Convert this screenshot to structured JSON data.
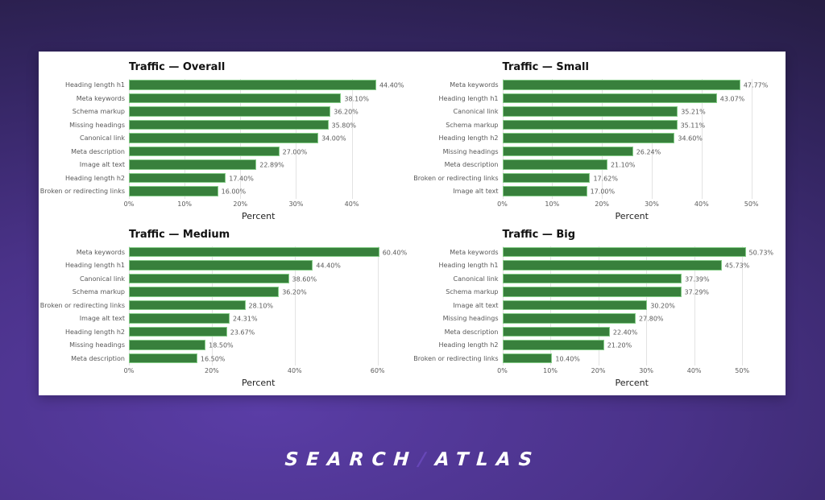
{
  "brand": {
    "part1": "SEARCH",
    "slash": "/",
    "part2": "ATLAS"
  },
  "style": {
    "bar_fill": "#38803c",
    "bar_edge": "#84cc87",
    "gridline": "#e3e3e3",
    "panel_bg": "#ffffff",
    "background_purple": "#4a3289",
    "logo_slash": "#6747b8"
  },
  "chart_data": [
    {
      "type": "bar",
      "orientation": "horizontal",
      "title": "Traffic — Overall",
      "xlabel": "Percent",
      "categories": [
        "Heading length h1",
        "Meta keywords",
        "Schema markup",
        "Missing headings",
        "Canonical link",
        "Meta description",
        "Image alt text",
        "Heading length h2",
        "Broken or redirecting links"
      ],
      "values": [
        44.4,
        38.1,
        36.2,
        35.8,
        34.0,
        27.0,
        22.89,
        17.4,
        16.0
      ],
      "value_labels": [
        "44.40%",
        "38.10%",
        "36.20%",
        "35.80%",
        "34.00%",
        "27.00%",
        "22.89%",
        "17.40%",
        "16.00%"
      ],
      "tick_values": [
        0,
        10,
        20,
        30,
        40
      ],
      "tick_labels": [
        "0%",
        "10%",
        "20%",
        "30%",
        "40%"
      ],
      "xlim": [
        0,
        46.5
      ],
      "grid": true,
      "legend": "none"
    },
    {
      "type": "bar",
      "orientation": "horizontal",
      "title": "Traffic — Small",
      "xlabel": "Percent",
      "categories": [
        "Meta keywords",
        "Heading length h1",
        "Canonical link",
        "Schema markup",
        "Heading length h2",
        "Missing headings",
        "Meta description",
        "Broken or redirecting links",
        "Image alt text"
      ],
      "values": [
        47.77,
        43.07,
        35.21,
        35.11,
        34.6,
        26.24,
        21.1,
        17.62,
        17.0
      ],
      "value_labels": [
        "47.77%",
        "43.07%",
        "35.21%",
        "35.11%",
        "34.60%",
        "26.24%",
        "21.10%",
        "17.62%",
        "17.00%"
      ],
      "tick_values": [
        0,
        10,
        20,
        30,
        40,
        50
      ],
      "tick_labels": [
        "0%",
        "10%",
        "20%",
        "30%",
        "40%",
        "50%"
      ],
      "xlim": [
        0,
        52
      ],
      "grid": true,
      "legend": "none"
    },
    {
      "type": "bar",
      "orientation": "horizontal",
      "title": "Traffic — Medium",
      "xlabel": "Percent",
      "categories": [
        "Meta keywords",
        "Heading length h1",
        "Canonical link",
        "Schema markup",
        "Broken or redirecting links",
        "Image alt text",
        "Heading length h2",
        "Missing headings",
        "Meta description"
      ],
      "values": [
        60.4,
        44.4,
        38.6,
        36.2,
        28.1,
        24.31,
        23.67,
        18.5,
        16.5
      ],
      "value_labels": [
        "60.40%",
        "44.40%",
        "38.60%",
        "36.20%",
        "28.10%",
        "24.31%",
        "23.67%",
        "18.50%",
        "16.50%"
      ],
      "tick_values": [
        0,
        20,
        40,
        60
      ],
      "tick_labels": [
        "0%",
        "20%",
        "40%",
        "60%"
      ],
      "xlim": [
        0,
        62.5
      ],
      "grid": true,
      "legend": "none"
    },
    {
      "type": "bar",
      "orientation": "horizontal",
      "title": "Traffic — Big",
      "xlabel": "Percent",
      "categories": [
        "Meta keywords",
        "Heading length h1",
        "Canonical link",
        "Schema markup",
        "Image alt text",
        "Missing headings",
        "Meta description",
        "Heading length h2",
        "Broken or redirecting links"
      ],
      "values": [
        50.73,
        45.73,
        37.39,
        37.29,
        30.2,
        27.8,
        22.4,
        21.2,
        10.4
      ],
      "value_labels": [
        "50.73%",
        "45.73%",
        "37.39%",
        "37.29%",
        "30.20%",
        "27.80%",
        "22.40%",
        "21.20%",
        "10.40%"
      ],
      "tick_values": [
        0,
        10,
        20,
        30,
        40,
        50
      ],
      "tick_labels": [
        "0%",
        "10%",
        "20%",
        "30%",
        "40%",
        "50%"
      ],
      "xlim": [
        0,
        54
      ],
      "grid": true,
      "legend": "none"
    }
  ]
}
